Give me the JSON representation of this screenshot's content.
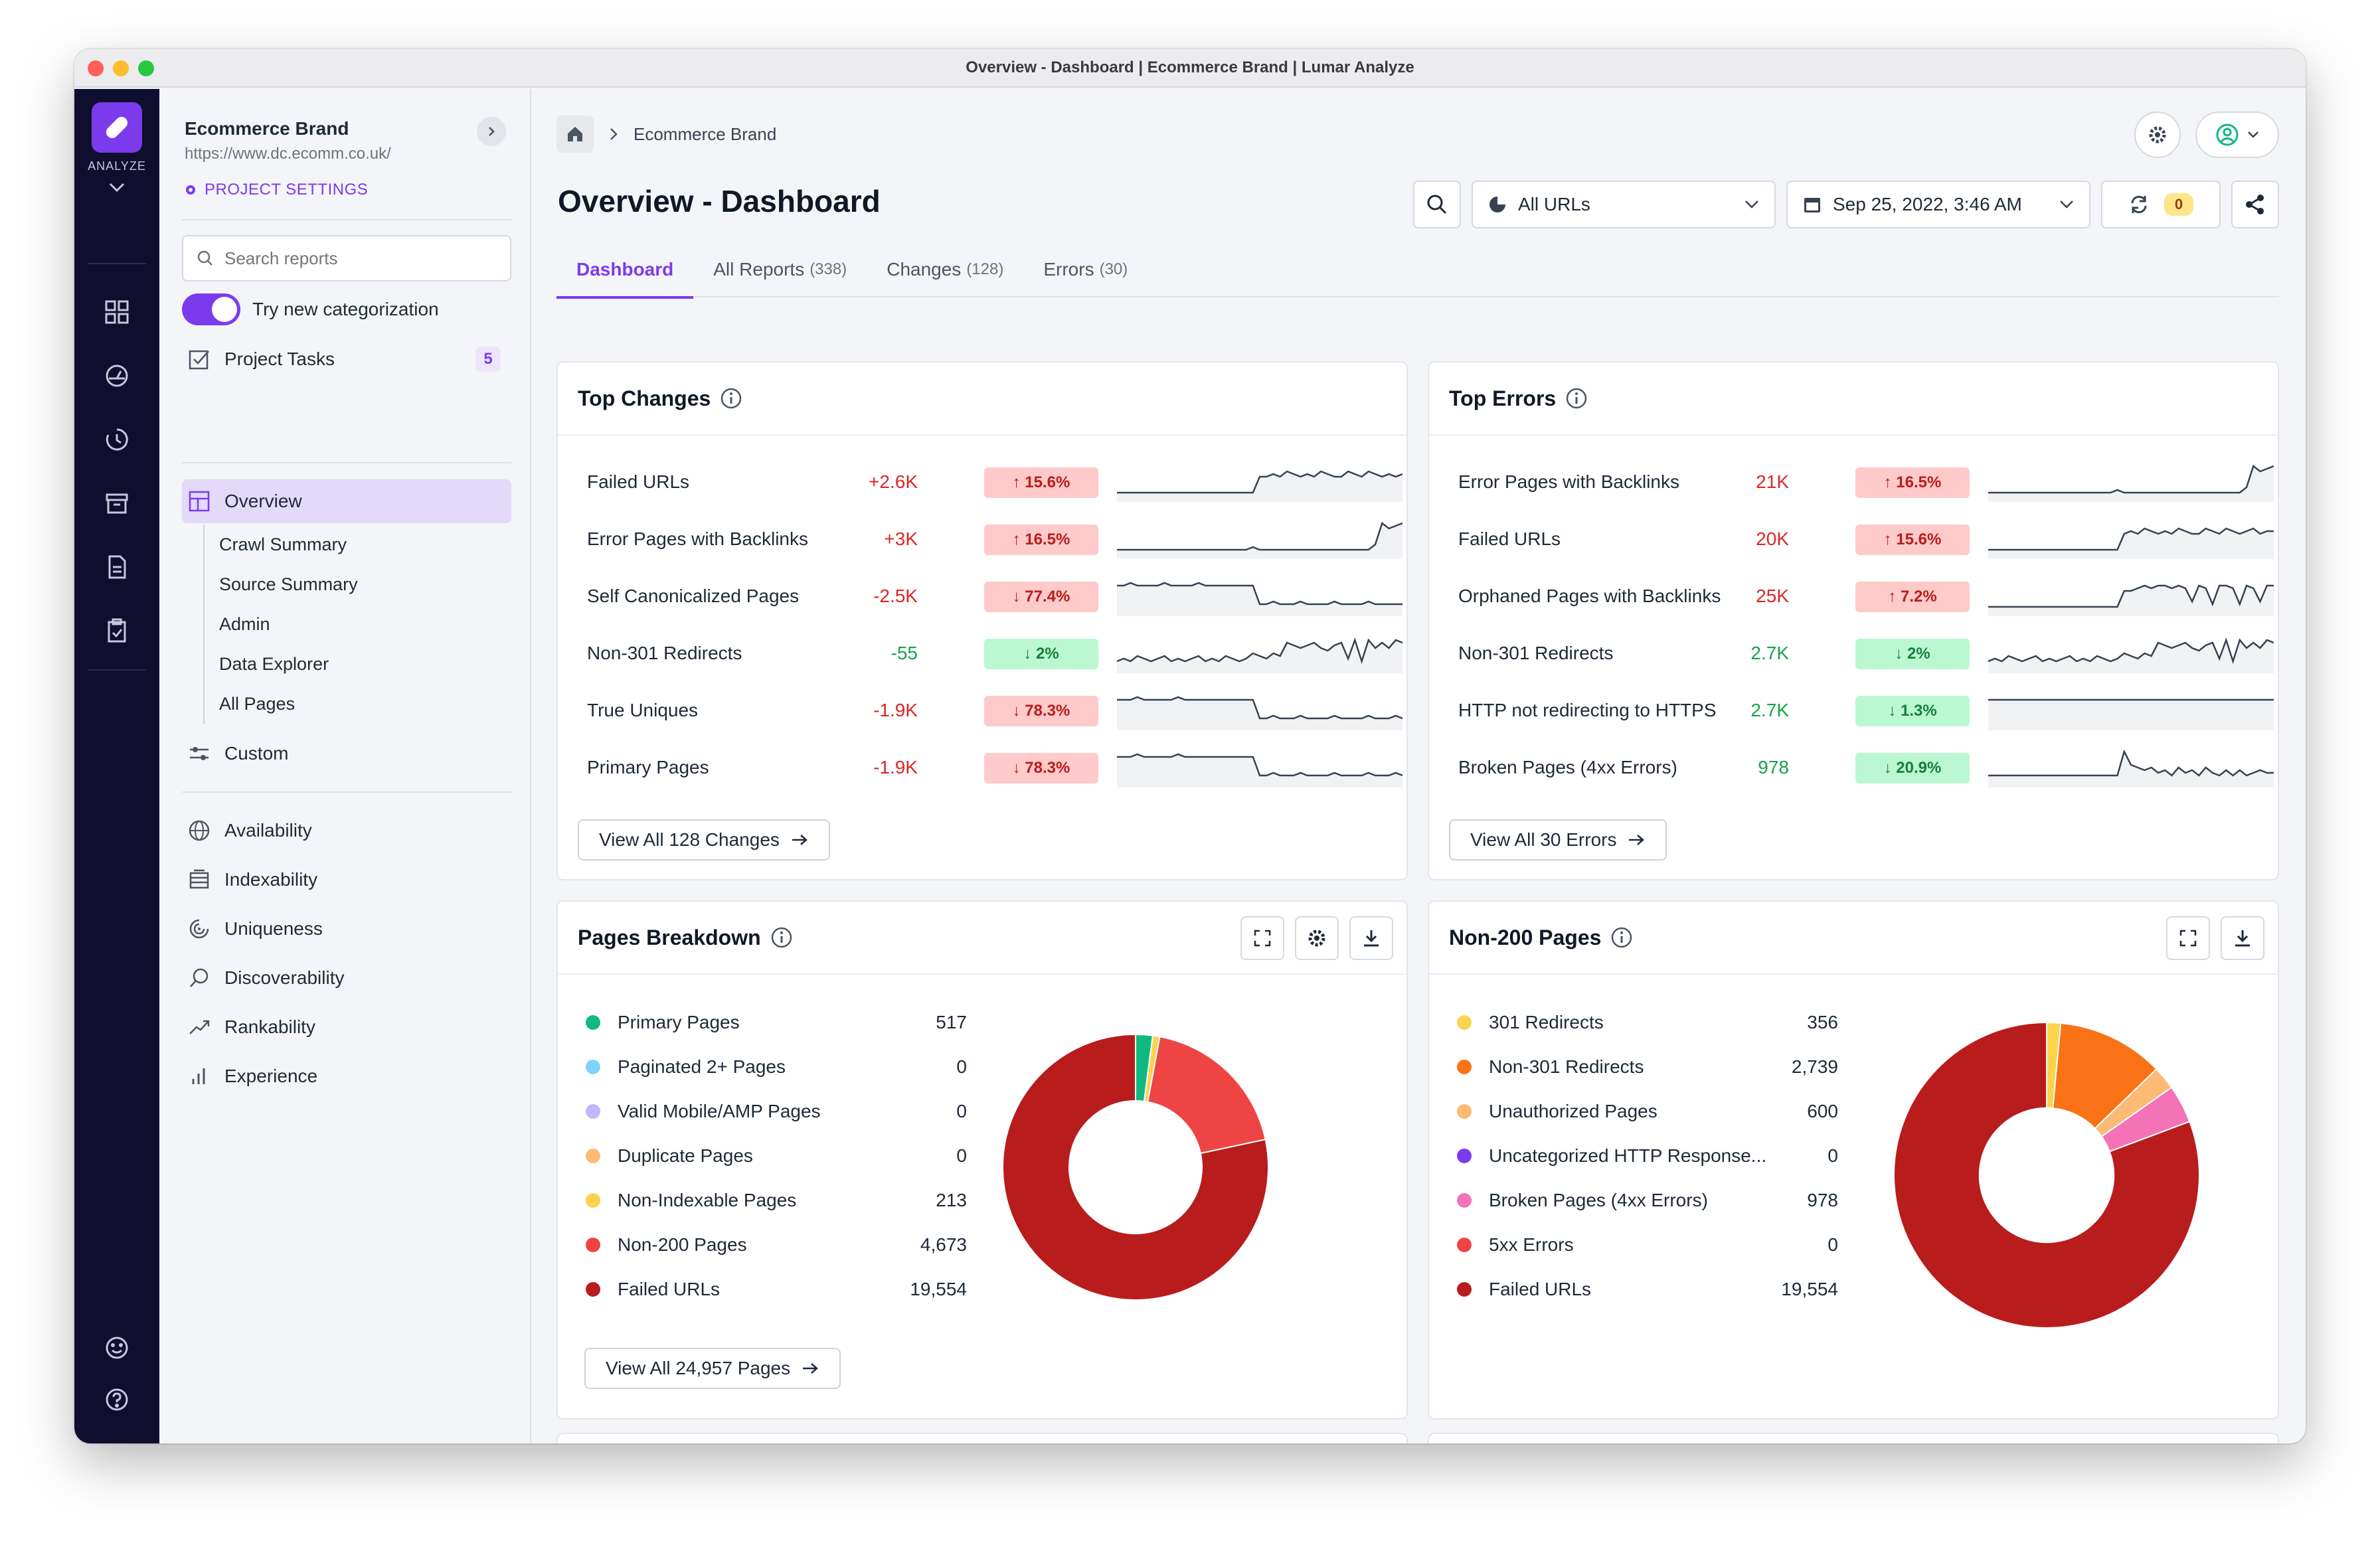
{
  "window": {
    "title": "Overview - Dashboard | Ecommerce Brand | Lumar Analyze"
  },
  "rail": {
    "label": "ANALYZE",
    "icons": [
      "grid-icon",
      "gauge-icon",
      "history-icon",
      "archive-icon",
      "document-icon",
      "clipboard-check-icon"
    ],
    "bottom_icons": [
      "smiley-icon",
      "help-icon"
    ]
  },
  "project": {
    "name": "Ecommerce Brand",
    "url": "https://www.dc.ecomm.co.uk/",
    "settings_label": "PROJECT SETTINGS"
  },
  "search": {
    "placeholder": "Search reports"
  },
  "categorization": {
    "label": "Try new categorization",
    "enabled": true
  },
  "tasks": {
    "label": "Project Tasks",
    "count": "5"
  },
  "nav": {
    "overview": "Overview",
    "sub": [
      "Crawl Summary",
      "Source Summary",
      "Admin",
      "Data Explorer",
      "All Pages"
    ],
    "custom": "Custom",
    "categories": [
      "Availability",
      "Indexability",
      "Uniqueness",
      "Discoverability",
      "Rankability",
      "Experience"
    ]
  },
  "breadcrumb": {
    "current": "Ecommerce Brand"
  },
  "page": {
    "title": "Overview - Dashboard"
  },
  "toolbar": {
    "segment": "All URLs",
    "date": "Sep 25, 2022, 3:46 AM",
    "sync_count": "0"
  },
  "tabs": [
    {
      "label": "Dashboard",
      "count": ""
    },
    {
      "label": "All Reports",
      "count": "(338)"
    },
    {
      "label": "Changes",
      "count": "(128)"
    },
    {
      "label": "Errors",
      "count": "(30)"
    }
  ],
  "top_changes": {
    "title": "Top Changes",
    "rows": [
      {
        "name": "Failed URLs",
        "value": "+2.6K",
        "badge": "↑ 15.6%",
        "tone": "up",
        "spark": [
          2,
          2,
          2,
          2,
          2,
          2,
          2,
          2,
          2,
          2,
          2,
          2,
          2,
          2,
          2,
          2,
          2,
          2,
          2,
          2,
          2,
          8,
          8,
          9,
          8,
          10,
          9,
          8,
          9,
          8,
          10,
          9,
          8,
          8,
          10,
          9,
          8,
          10,
          9,
          8,
          9,
          8,
          9
        ]
      },
      {
        "name": "Error Pages with Backlinks",
        "value": "+3K",
        "badge": "↑ 16.5%",
        "tone": "up",
        "spark": [
          2,
          2,
          2,
          2,
          2,
          2,
          2,
          2,
          2,
          2,
          2,
          2,
          2,
          2,
          2,
          2,
          2,
          2,
          2,
          2,
          3,
          2,
          2,
          2,
          2,
          2,
          2,
          2,
          2,
          2,
          2,
          2,
          2,
          2,
          2,
          2,
          2,
          2,
          4,
          12,
          10,
          11,
          12
        ]
      },
      {
        "name": "Self Canonicalized Pages",
        "value": "-2.5K",
        "badge": "↓ 77.4%",
        "tone": "down",
        "spark": [
          10,
          10,
          11,
          10,
          10,
          10,
          10,
          11,
          10,
          10,
          10,
          10,
          11,
          10,
          10,
          10,
          10,
          10,
          10,
          10,
          10,
          3,
          3,
          4,
          3,
          3,
          3,
          4,
          3,
          3,
          3,
          3,
          4,
          3,
          3,
          3,
          3,
          4,
          3,
          3,
          3,
          3,
          3
        ]
      },
      {
        "name": "Non-301 Redirects",
        "value": "-55",
        "badge": "↓ 2%",
        "tone": "good",
        "spark": [
          3,
          4,
          3,
          5,
          4,
          3,
          4,
          5,
          3,
          4,
          3,
          4,
          5,
          3,
          4,
          3,
          5,
          4,
          3,
          4,
          6,
          5,
          4,
          6,
          5,
          10,
          9,
          8,
          9,
          10,
          8,
          7,
          9,
          10,
          4,
          11,
          3,
          11,
          8,
          10,
          8,
          11,
          10
        ]
      },
      {
        "name": "True Uniques",
        "value": "-1.9K",
        "badge": "↓ 78.3%",
        "tone": "down",
        "spark": [
          10,
          10,
          10,
          11,
          10,
          10,
          10,
          10,
          10,
          11,
          10,
          10,
          10,
          10,
          10,
          10,
          10,
          10,
          10,
          10,
          10,
          3,
          3,
          4,
          3,
          3,
          3,
          4,
          3,
          3,
          3,
          3,
          4,
          3,
          3,
          3,
          3,
          4,
          3,
          3,
          3,
          4,
          3
        ]
      },
      {
        "name": "Primary Pages",
        "value": "-1.9K",
        "badge": "↓ 78.3%",
        "tone": "down",
        "spark": [
          10,
          10,
          10,
          11,
          10,
          10,
          10,
          10,
          10,
          11,
          10,
          10,
          10,
          10,
          10,
          10,
          10,
          10,
          10,
          10,
          10,
          3,
          3,
          4,
          3,
          3,
          3,
          4,
          3,
          3,
          3,
          3,
          4,
          3,
          3,
          3,
          3,
          4,
          3,
          3,
          3,
          4,
          3
        ]
      }
    ],
    "view_all": "View All 128 Changes"
  },
  "top_errors": {
    "title": "Top Errors",
    "rows": [
      {
        "name": "Error Pages with Backlinks",
        "value": "21K",
        "badge": "↑ 16.5%",
        "tone": "up",
        "spark": [
          2,
          2,
          2,
          2,
          2,
          2,
          2,
          2,
          2,
          2,
          2,
          2,
          2,
          2,
          2,
          2,
          2,
          2,
          2,
          3,
          2,
          2,
          2,
          2,
          2,
          2,
          2,
          2,
          2,
          2,
          2,
          2,
          2,
          2,
          2,
          2,
          2,
          2,
          4,
          12,
          10,
          11,
          12
        ]
      },
      {
        "name": "Failed URLs",
        "value": "20K",
        "badge": "↑ 15.6%",
        "tone": "up",
        "spark": [
          2,
          2,
          2,
          2,
          2,
          2,
          2,
          2,
          2,
          2,
          2,
          2,
          2,
          2,
          2,
          2,
          2,
          2,
          2,
          2,
          8,
          9,
          8,
          10,
          9,
          8,
          9,
          8,
          10,
          9,
          8,
          8,
          10,
          9,
          8,
          10,
          9,
          8,
          9,
          10,
          8,
          9,
          9
        ]
      },
      {
        "name": "Orphaned Pages with Backlinks",
        "value": "25K",
        "badge": "↑ 7.2%",
        "tone": "up",
        "spark": [
          2,
          2,
          2,
          2,
          2,
          2,
          2,
          2,
          2,
          2,
          2,
          2,
          2,
          2,
          2,
          2,
          2,
          2,
          2,
          2,
          8,
          8,
          9,
          10,
          9,
          10,
          10,
          9,
          10,
          9,
          4,
          10,
          9,
          3,
          10,
          10,
          9,
          3,
          10,
          9,
          4,
          10,
          10
        ]
      },
      {
        "name": "Non-301 Redirects",
        "value": "2.7K",
        "badge": "↓ 2%",
        "tone": "good",
        "spark": [
          3,
          4,
          3,
          5,
          4,
          3,
          4,
          5,
          3,
          4,
          3,
          4,
          5,
          3,
          4,
          3,
          5,
          4,
          3,
          4,
          6,
          5,
          4,
          6,
          5,
          10,
          9,
          8,
          9,
          10,
          8,
          7,
          9,
          10,
          4,
          11,
          3,
          11,
          8,
          10,
          8,
          11,
          10
        ]
      },
      {
        "name": "HTTP not redirecting to HTTPS",
        "value": "2.7K",
        "badge": "↓ 1.3%",
        "tone": "good",
        "spark": [
          10,
          10,
          10,
          10,
          10,
          10,
          10,
          10,
          10,
          10,
          10,
          10,
          10,
          10,
          10,
          10,
          10,
          10,
          10,
          10,
          10,
          10,
          10,
          10,
          10,
          10,
          10,
          10,
          10,
          10,
          10,
          10,
          10,
          10,
          10,
          10,
          10,
          10,
          10,
          10,
          10,
          10,
          10
        ]
      },
      {
        "name": "Broken Pages (4xx Errors)",
        "value": "978",
        "badge": "↓ 20.9%",
        "tone": "good",
        "spark": [
          3,
          3,
          3,
          3,
          3,
          3,
          3,
          3,
          3,
          3,
          3,
          3,
          3,
          3,
          3,
          3,
          3,
          3,
          3,
          3,
          12,
          7,
          6,
          5,
          6,
          4,
          5,
          3,
          6,
          4,
          5,
          3,
          6,
          4,
          3,
          5,
          3,
          5,
          3,
          4,
          5,
          4,
          4
        ]
      }
    ],
    "view_all": "View All 30 Errors"
  },
  "pages_breakdown": {
    "title": "Pages Breakdown",
    "view_all": "View All 24,957 Pages",
    "colors": [
      "#10b981",
      "#7dd3fc",
      "#c4b5fd",
      "#fdba74",
      "#fcd34d",
      "#ef4444",
      "#b91c1c"
    ]
  },
  "non200": {
    "title": "Non-200 Pages",
    "colors": [
      "#fcd34d",
      "#f97316",
      "#fdba74",
      "#7c3aed",
      "#f472b6",
      "#ef4444",
      "#b91c1c"
    ]
  },
  "chart_data": [
    {
      "type": "pie",
      "title": "Pages Breakdown",
      "categories": [
        "Primary Pages",
        "Paginated 2+ Pages",
        "Valid Mobile/AMP Pages",
        "Duplicate Pages",
        "Non-Indexable Pages",
        "Non-200 Pages",
        "Failed URLs"
      ],
      "values": [
        517,
        0,
        0,
        0,
        213,
        4673,
        19554
      ],
      "value_labels": [
        "517",
        "0",
        "0",
        "0",
        "213",
        "4,673",
        "19,554"
      ]
    },
    {
      "type": "pie",
      "title": "Non-200 Pages",
      "categories": [
        "301 Redirects",
        "Non-301 Redirects",
        "Unauthorized Pages",
        "Uncategorized HTTP Response...",
        "Broken Pages (4xx Errors)",
        "5xx Errors",
        "Failed URLs"
      ],
      "values": [
        356,
        2739,
        600,
        0,
        978,
        0,
        19554
      ],
      "value_labels": [
        "356",
        "2,739",
        "600",
        "0",
        "978",
        "0",
        "19,554"
      ]
    }
  ]
}
